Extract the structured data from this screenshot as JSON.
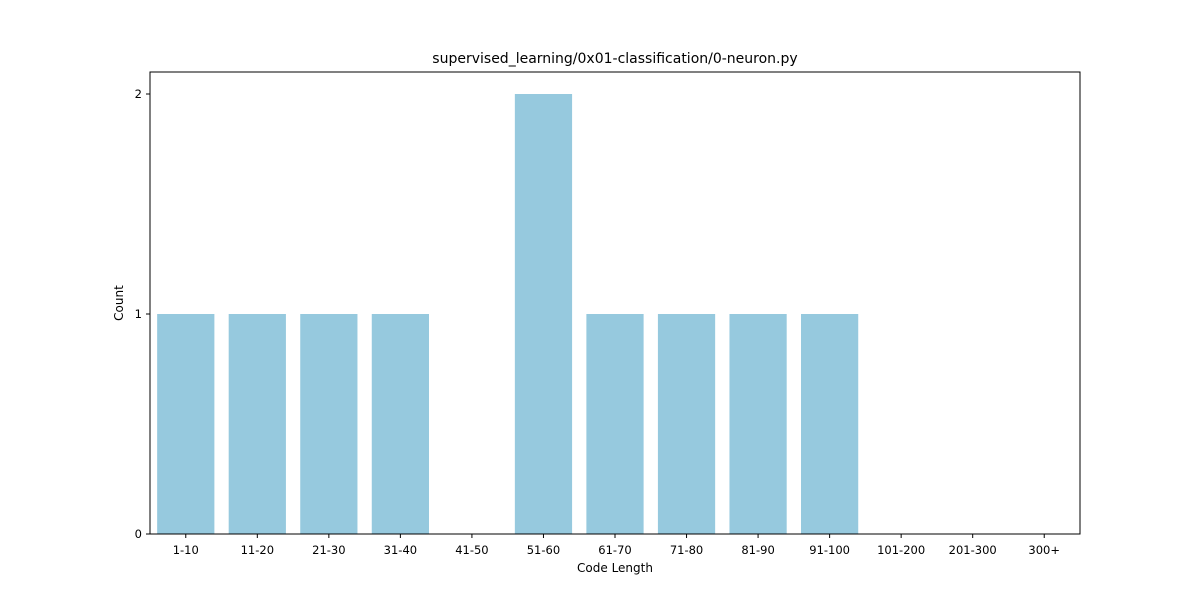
{
  "chart_data": {
    "type": "bar",
    "title": "supervised_learning/0x01-classification/0-neuron.py",
    "xlabel": "Code Length",
    "ylabel": "Count",
    "categories": [
      "1-10",
      "11-20",
      "21-30",
      "31-40",
      "41-50",
      "51-60",
      "61-70",
      "71-80",
      "81-90",
      "91-100",
      "101-200",
      "201-300",
      "300+"
    ],
    "values": [
      1,
      1,
      1,
      1,
      0,
      2,
      1,
      1,
      1,
      1,
      0,
      0,
      0
    ],
    "yticks": [
      "0",
      "1",
      "2"
    ],
    "ylim": [
      0,
      2.1
    ],
    "grid": false,
    "bar_color": "#96c9de"
  }
}
